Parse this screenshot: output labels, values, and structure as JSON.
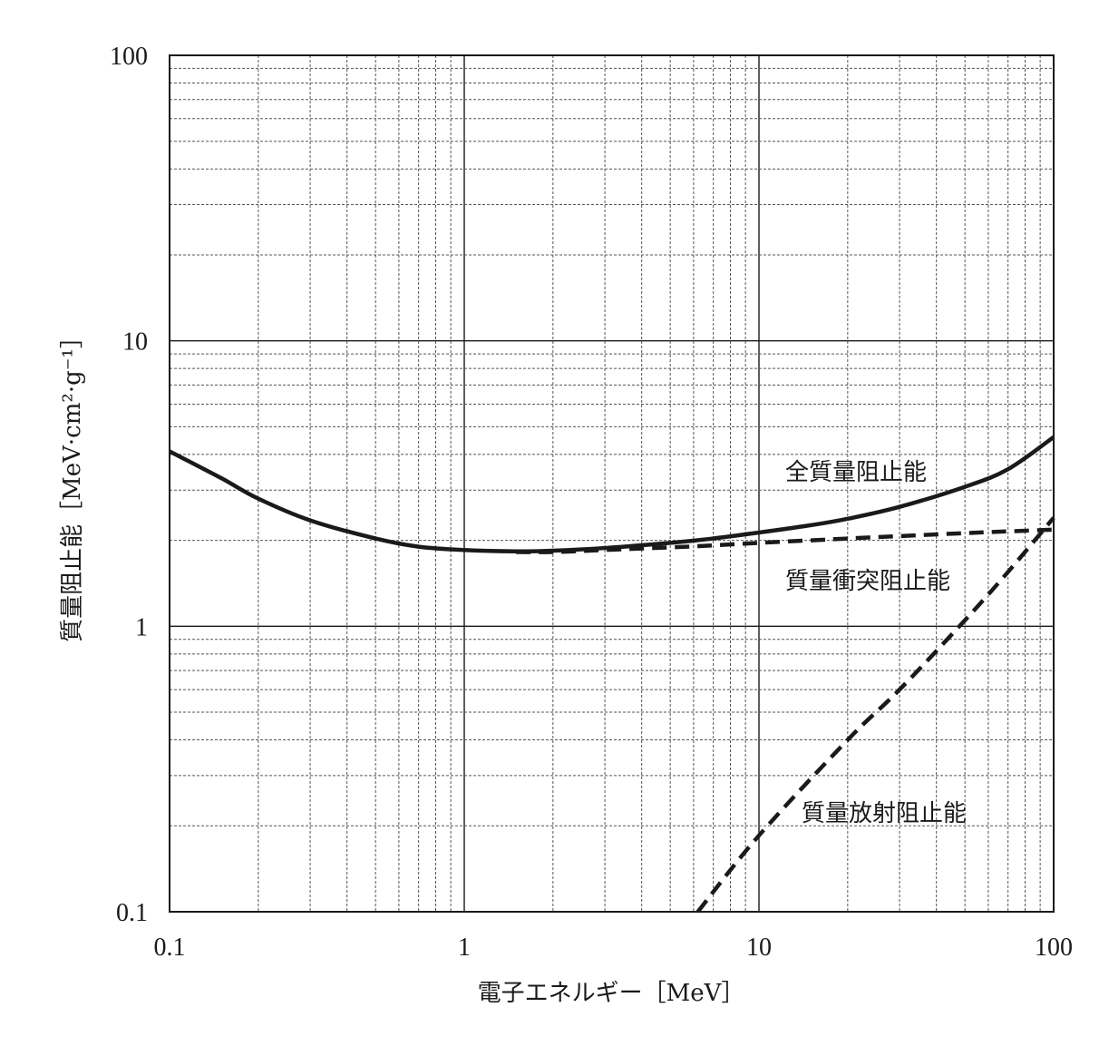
{
  "chart_data": {
    "type": "line",
    "xscale": "log",
    "yscale": "log",
    "xlim": [
      0.1,
      100
    ],
    "ylim": [
      0.1,
      100
    ],
    "grid": true,
    "xlabel": "電子エネルギー［MeV］",
    "ylabel": "質量阻止能［MeV·cm²·g⁻¹］",
    "x_ticks": [
      "0.1",
      "1",
      "10",
      "100"
    ],
    "y_ticks": [
      "0.1",
      "1",
      "10",
      "100"
    ],
    "series": [
      {
        "name": "全質量阻止能",
        "style": "solid",
        "color": "#1a1a1a",
        "x": [
          0.1,
          0.15,
          0.2,
          0.3,
          0.5,
          0.7,
          1,
          1.5,
          2,
          3,
          5,
          7,
          10,
          15,
          20,
          30,
          50,
          70,
          100
        ],
        "y": [
          4.1,
          3.3,
          2.8,
          2.35,
          2.03,
          1.9,
          1.85,
          1.83,
          1.84,
          1.88,
          1.96,
          2.03,
          2.13,
          2.26,
          2.38,
          2.62,
          3.08,
          3.55,
          4.6
        ]
      },
      {
        "name": "質量衝突阻止能",
        "style": "dashed",
        "color": "#1a1a1a",
        "x": [
          1.5,
          2,
          3,
          5,
          7,
          10,
          15,
          20,
          30,
          50,
          70,
          100
        ],
        "y": [
          1.82,
          1.82,
          1.85,
          1.89,
          1.92,
          1.96,
          2.0,
          2.03,
          2.07,
          2.12,
          2.15,
          2.18
        ]
      },
      {
        "name": "質量放射阻止能",
        "style": "dashed",
        "color": "#1a1a1a",
        "x": [
          6.2,
          10,
          20,
          30,
          50,
          70,
          100
        ],
        "y": [
          0.1,
          0.185,
          0.4,
          0.6,
          1.05,
          1.55,
          2.4
        ]
      }
    ]
  }
}
